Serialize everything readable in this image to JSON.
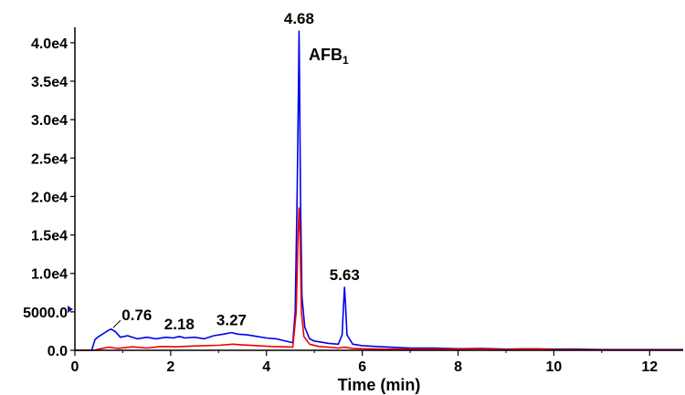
{
  "chart_data": {
    "type": "line",
    "title": "",
    "xlabel": "Time (min)",
    "ylabel": "",
    "xlim": [
      0,
      12.7
    ],
    "ylim": [
      0,
      42000
    ],
    "x_ticks": [
      0,
      2,
      4,
      6,
      8,
      10,
      12
    ],
    "y_ticks": [
      0,
      5000,
      10000,
      15000,
      20000,
      25000,
      30000,
      35000,
      40000
    ],
    "y_tick_labels": [
      "0.0",
      "5000.0",
      "1.0e4",
      "1.5e4",
      "2.0e4",
      "2.5e4",
      "3.0e4",
      "3.5e4",
      "4.0e4"
    ],
    "grid": false,
    "annotation": {
      "main": "AFB",
      "sub": "1"
    },
    "peak_labels": [
      {
        "x": 0.76,
        "y": 2700,
        "text": "0.76"
      },
      {
        "x": 2.18,
        "y": 1800,
        "text": "2.18"
      },
      {
        "x": 3.27,
        "y": 2300,
        "text": "3.27"
      },
      {
        "x": 4.68,
        "y": 41500,
        "text": "4.68"
      },
      {
        "x": 5.63,
        "y": 8200,
        "text": "5.63"
      }
    ],
    "series": [
      {
        "color": "#0000ee",
        "points": [
          [
            0.0,
            0
          ],
          [
            0.35,
            0
          ],
          [
            0.42,
            1400
          ],
          [
            0.5,
            1800
          ],
          [
            0.6,
            2200
          ],
          [
            0.7,
            2600
          ],
          [
            0.76,
            2750
          ],
          [
            0.85,
            2400
          ],
          [
            0.95,
            1700
          ],
          [
            1.1,
            1900
          ],
          [
            1.3,
            1500
          ],
          [
            1.5,
            1700
          ],
          [
            1.7,
            1500
          ],
          [
            1.9,
            1700
          ],
          [
            2.05,
            1600
          ],
          [
            2.18,
            1800
          ],
          [
            2.3,
            1600
          ],
          [
            2.5,
            1700
          ],
          [
            2.7,
            1500
          ],
          [
            2.9,
            1900
          ],
          [
            3.1,
            2100
          ],
          [
            3.27,
            2300
          ],
          [
            3.4,
            2100
          ],
          [
            3.6,
            2000
          ],
          [
            3.8,
            1800
          ],
          [
            4.0,
            1600
          ],
          [
            4.2,
            1500
          ],
          [
            4.4,
            1200
          ],
          [
            4.55,
            1000
          ],
          [
            4.6,
            5000
          ],
          [
            4.64,
            20000
          ],
          [
            4.67,
            35000
          ],
          [
            4.68,
            41500
          ],
          [
            4.69,
            36000
          ],
          [
            4.71,
            20000
          ],
          [
            4.74,
            7000
          ],
          [
            4.8,
            3000
          ],
          [
            4.9,
            1500
          ],
          [
            5.0,
            1200
          ],
          [
            5.1,
            1100
          ],
          [
            5.3,
            900
          ],
          [
            5.5,
            800
          ],
          [
            5.58,
            2000
          ],
          [
            5.61,
            6000
          ],
          [
            5.63,
            8200
          ],
          [
            5.65,
            6000
          ],
          [
            5.68,
            2000
          ],
          [
            5.8,
            800
          ],
          [
            6.0,
            600
          ],
          [
            6.3,
            500
          ],
          [
            6.6,
            400
          ],
          [
            7.0,
            300
          ],
          [
            7.5,
            300
          ],
          [
            8.0,
            200
          ],
          [
            8.5,
            250
          ],
          [
            9.0,
            150
          ],
          [
            9.5,
            200
          ],
          [
            10.0,
            150
          ],
          [
            10.5,
            150
          ],
          [
            11.0,
            100
          ],
          [
            11.5,
            100
          ],
          [
            12.0,
            100
          ],
          [
            12.7,
            100
          ]
        ]
      },
      {
        "color": "#ee0000",
        "points": [
          [
            0.0,
            0
          ],
          [
            0.4,
            0
          ],
          [
            0.5,
            150
          ],
          [
            0.7,
            400
          ],
          [
            0.9,
            250
          ],
          [
            1.2,
            450
          ],
          [
            1.5,
            300
          ],
          [
            1.8,
            500
          ],
          [
            2.1,
            450
          ],
          [
            2.4,
            550
          ],
          [
            2.7,
            600
          ],
          [
            3.0,
            650
          ],
          [
            3.3,
            800
          ],
          [
            3.5,
            700
          ],
          [
            3.8,
            600
          ],
          [
            4.1,
            500
          ],
          [
            4.4,
            450
          ],
          [
            4.55,
            400
          ],
          [
            4.62,
            5000
          ],
          [
            4.66,
            15000
          ],
          [
            4.68,
            18500
          ],
          [
            4.7,
            15000
          ],
          [
            4.73,
            5000
          ],
          [
            4.78,
            1800
          ],
          [
            4.9,
            800
          ],
          [
            5.1,
            500
          ],
          [
            5.3,
            400
          ],
          [
            5.5,
            300
          ],
          [
            5.63,
            400
          ],
          [
            5.8,
            250
          ],
          [
            6.0,
            200
          ],
          [
            6.5,
            150
          ],
          [
            7.0,
            150
          ],
          [
            8.0,
            150
          ],
          [
            8.5,
            200
          ],
          [
            9.0,
            100
          ],
          [
            9.5,
            200
          ],
          [
            10.0,
            100
          ],
          [
            11.0,
            50
          ],
          [
            12.0,
            50
          ],
          [
            12.7,
            50
          ]
        ]
      }
    ]
  }
}
